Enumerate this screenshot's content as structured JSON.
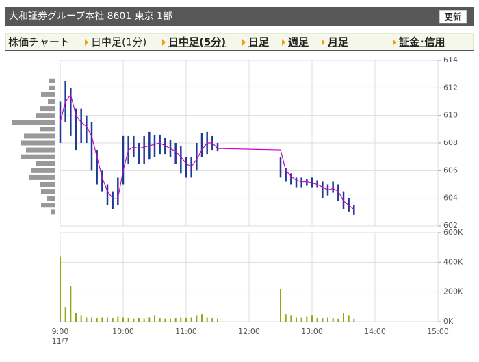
{
  "header": {
    "title": "大和証券グループ本社  8601  東京 1部",
    "button": "更新"
  },
  "nav": {
    "label": "株価チャート",
    "items": [
      "日中足(1分)",
      "日中足(5分)",
      "日足",
      "週足",
      "月足",
      "証金･信用"
    ]
  },
  "chart_data": [
    {
      "type": "range",
      "x": [
        "9:00",
        "9:05",
        "9:10",
        "9:15",
        "9:20",
        "9:25",
        "9:30",
        "9:35",
        "9:40",
        "9:45",
        "9:50",
        "9:55",
        "10:00",
        "10:05",
        "10:10",
        "10:15",
        "10:20",
        "10:25",
        "10:30",
        "10:35",
        "10:40",
        "10:45",
        "10:50",
        "10:55",
        "11:00",
        "11:05",
        "11:10",
        "11:15",
        "11:20",
        "11:25",
        "11:30",
        "12:30",
        "12:35",
        "12:40",
        "12:45",
        "12:50",
        "12:55",
        "13:00",
        "13:05",
        "13:10",
        "13:15",
        "13:20",
        "13:25",
        "13:30",
        "13:35",
        "13:40"
      ],
      "high": [
        611,
        612.5,
        612,
        610.5,
        610.5,
        610,
        609.5,
        607.5,
        606,
        605,
        604.5,
        605.5,
        608.5,
        608.5,
        608.5,
        608,
        608.5,
        608.8,
        608.6,
        608.6,
        608.4,
        608.2,
        608,
        607.8,
        607,
        607,
        608,
        608.7,
        608.8,
        608.5,
        608,
        607,
        606.2,
        605.8,
        605.5,
        605.5,
        605.4,
        605.5,
        605.3,
        605.2,
        605,
        605.2,
        605,
        604.5,
        604,
        603.5
      ],
      "low": [
        608,
        609.5,
        608.5,
        607.5,
        608,
        608,
        606,
        605,
        604.5,
        603.5,
        603.2,
        603.5,
        605,
        606.5,
        607,
        606.5,
        606.5,
        606.8,
        607,
        607.2,
        607.2,
        607,
        606.5,
        605.8,
        605.5,
        605.5,
        606,
        607,
        607.2,
        607.5,
        607.4,
        605.5,
        605.2,
        605,
        604.8,
        604.8,
        604.9,
        604.8,
        604.8,
        604,
        604.2,
        604.4,
        603.8,
        603.2,
        603,
        602.8
      ],
      "ma": [
        609.5,
        611,
        611.5,
        610,
        609.5,
        609.2,
        608.5,
        607,
        605.5,
        604.5,
        604,
        604,
        606,
        607.5,
        607.7,
        607.6,
        607.7,
        607.8,
        607.9,
        608,
        607.8,
        607.6,
        607.4,
        607,
        606.5,
        606.3,
        606.8,
        607.5,
        608,
        608,
        607.6,
        607.5,
        606,
        605.6,
        605.3,
        605.2,
        605.2,
        605.1,
        605,
        604.8,
        604.6,
        604.7,
        604.5,
        603.8,
        603.5,
        603.2
      ],
      "color": "#1f3a93",
      "ma_color": "#cc00cc",
      "xlim": [
        "9:00",
        "15:00"
      ],
      "xticks": [
        "9:00",
        "10:00",
        "11:00",
        "12:00",
        "13:00",
        "14:00",
        "15:00"
      ],
      "ylim": [
        602,
        614
      ],
      "yticks": [
        602,
        604,
        606,
        608,
        610,
        612,
        614
      ],
      "grid": true,
      "price_volume": {
        "color": "#999999",
        "prices": [
          612.5,
          612,
          611.5,
          611,
          610.5,
          610,
          609.5,
          609,
          608.5,
          608,
          607.5,
          607,
          606.5,
          606,
          605.5,
          605,
          604.5,
          604,
          603.5,
          603
        ],
        "values": [
          8,
          8,
          20,
          10,
          22,
          28,
          62,
          22,
          45,
          50,
          42,
          50,
          28,
          35,
          38,
          22,
          20,
          12,
          20,
          6
        ]
      }
    },
    {
      "type": "bar",
      "x": [
        "9:00",
        "9:05",
        "9:10",
        "9:15",
        "9:20",
        "9:25",
        "9:30",
        "9:35",
        "9:40",
        "9:45",
        "9:50",
        "9:55",
        "10:00",
        "10:05",
        "10:10",
        "10:15",
        "10:20",
        "10:25",
        "10:30",
        "10:35",
        "10:40",
        "10:45",
        "10:50",
        "10:55",
        "11:00",
        "11:05",
        "11:10",
        "11:15",
        "11:20",
        "11:25",
        "11:30",
        "12:30",
        "12:35",
        "12:40",
        "12:45",
        "12:50",
        "12:55",
        "13:00",
        "13:05",
        "13:10",
        "13:15",
        "13:20",
        "13:25",
        "13:30",
        "13:35",
        "13:40"
      ],
      "values": [
        440000,
        100000,
        240000,
        60000,
        40000,
        30000,
        30000,
        25000,
        30000,
        30000,
        25000,
        35000,
        30000,
        25000,
        20000,
        25000,
        20000,
        30000,
        40000,
        25000,
        20000,
        20000,
        25000,
        30000,
        25000,
        30000,
        40000,
        50000,
        30000,
        25000,
        20000,
        220000,
        50000,
        40000,
        30000,
        30000,
        35000,
        40000,
        25000,
        25000,
        30000,
        25000,
        20000,
        60000,
        40000,
        20000
      ],
      "color": "#8fa81a",
      "xlim": [
        "9:00",
        "15:00"
      ],
      "xticks": [
        "9:00",
        "10:00",
        "11:00",
        "12:00",
        "13:00",
        "14:00",
        "15:00"
      ],
      "date": "11/7",
      "ylim": [
        0,
        600000
      ],
      "yticks": [
        {
          "value": 0,
          "label": "0K"
        },
        {
          "value": 200000,
          "label": "200K"
        },
        {
          "value": 400000,
          "label": "400K"
        },
        {
          "value": 600000,
          "label": "600K"
        }
      ],
      "grid": true
    }
  ]
}
